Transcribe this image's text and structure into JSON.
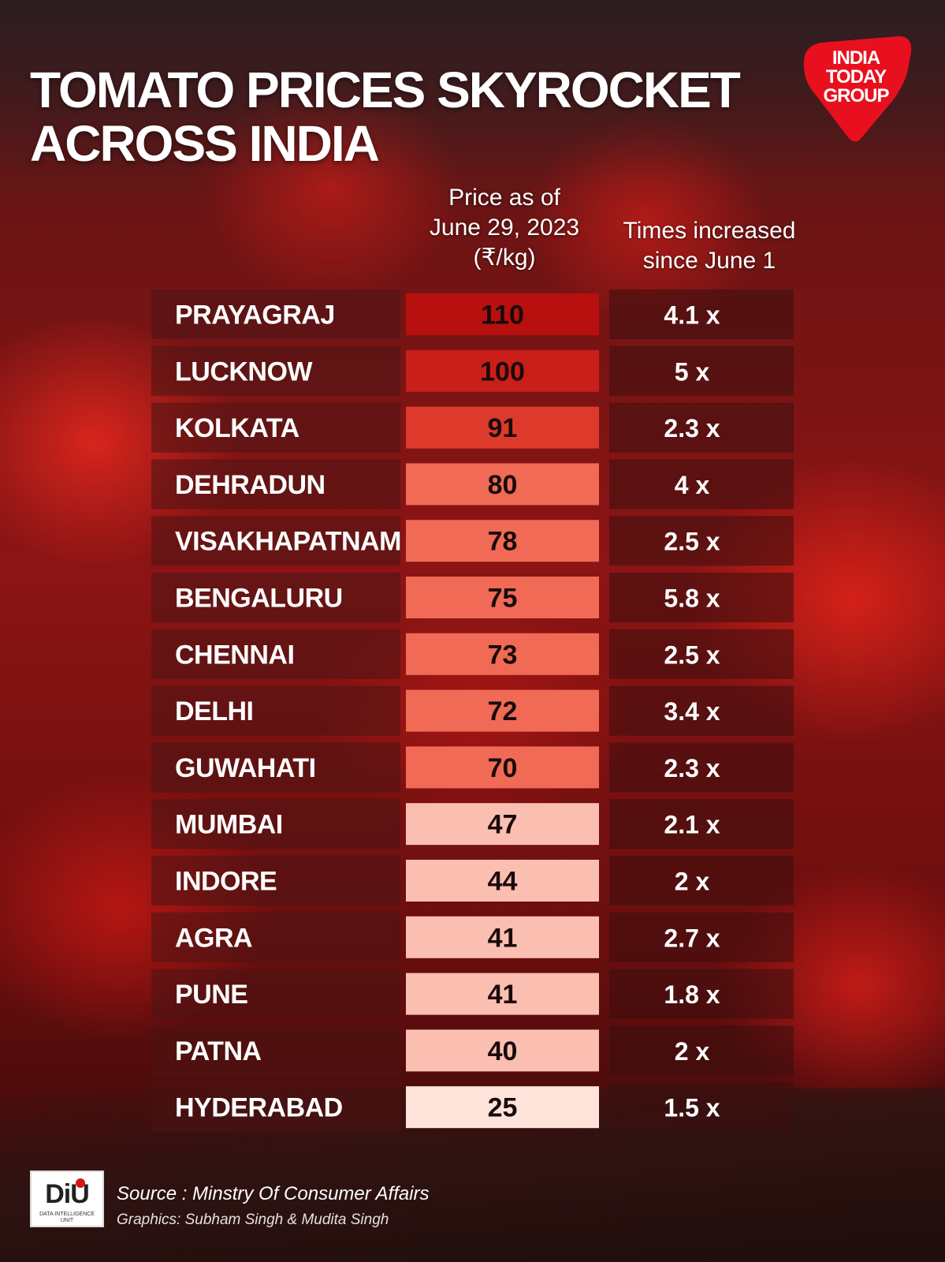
{
  "title": "TOMATO PRICES SKYROCKET ACROSS INDIA",
  "title_lines": [
    "TOMATO PRICES SKYROCKET",
    "ACROSS INDIA"
  ],
  "logo": {
    "lines": [
      "INDIA",
      "TODAY",
      "GROUP"
    ],
    "color": "#e8101e"
  },
  "footer": {
    "logo_text": "DiU",
    "logo_subtext": "DATA INTELLIGENCE UNIT",
    "source": "Source : Minstry Of Consumer Affairs",
    "graphics": "Graphics: Subham Singh & Mudita Singh"
  },
  "chart_data": {
    "type": "table",
    "columns": [
      {
        "key": "city",
        "label": ""
      },
      {
        "key": "price",
        "label_lines": [
          "Price as of",
          "June 29, 2023",
          "(₹/kg)"
        ]
      },
      {
        "key": "times",
        "label_lines": [
          "Times increased",
          "since June 1"
        ]
      }
    ],
    "rows": [
      {
        "city": "PRAYAGRAJ",
        "price": 110,
        "times": "4.1 x",
        "times_value": 4.1
      },
      {
        "city": "LUCKNOW",
        "price": 100,
        "times": "5 x",
        "times_value": 5
      },
      {
        "city": "KOLKATA",
        "price": 91,
        "times": "2.3 x",
        "times_value": 2.3
      },
      {
        "city": "DEHRADUN",
        "price": 80,
        "times": "4 x",
        "times_value": 4
      },
      {
        "city": "VISAKHAPATNAM",
        "price": 78,
        "times": "2.5 x",
        "times_value": 2.5
      },
      {
        "city": "BENGALURU",
        "price": 75,
        "times": "5.8 x",
        "times_value": 5.8
      },
      {
        "city": "CHENNAI",
        "price": 73,
        "times": "2.5 x",
        "times_value": 2.5
      },
      {
        "city": "DELHI",
        "price": 72,
        "times": "3.4 x",
        "times_value": 3.4
      },
      {
        "city": "GUWAHATI",
        "price": 70,
        "times": "2.3 x",
        "times_value": 2.3
      },
      {
        "city": "MUMBAI",
        "price": 47,
        "times": "2.1 x",
        "times_value": 2.1
      },
      {
        "city": "INDORE",
        "price": 44,
        "times": "2 x",
        "times_value": 2
      },
      {
        "city": "AGRA",
        "price": 41,
        "times": "2.7 x",
        "times_value": 2.7
      },
      {
        "city": "PUNE",
        "price": 41,
        "times": "1.8 x",
        "times_value": 1.8
      },
      {
        "city": "PATNA",
        "price": 40,
        "times": "2 x",
        "times_value": 2
      },
      {
        "city": "HYDERABAD",
        "price": 25,
        "times": "1.5 x",
        "times_value": 1.5
      }
    ],
    "price_color_scale": {
      "bands": [
        {
          "min": 105,
          "color": "#b80f0f"
        },
        {
          "min": 95,
          "color": "#c91e1a"
        },
        {
          "min": 85,
          "color": "#dd3a2c"
        },
        {
          "min": 60,
          "color": "#f06a55"
        },
        {
          "min": 30,
          "color": "#fbbfb2"
        },
        {
          "min": 0,
          "color": "#fde3da"
        }
      ]
    },
    "colors": {
      "row_band": "#4a1414",
      "times_band": "#3a0f0f"
    }
  }
}
